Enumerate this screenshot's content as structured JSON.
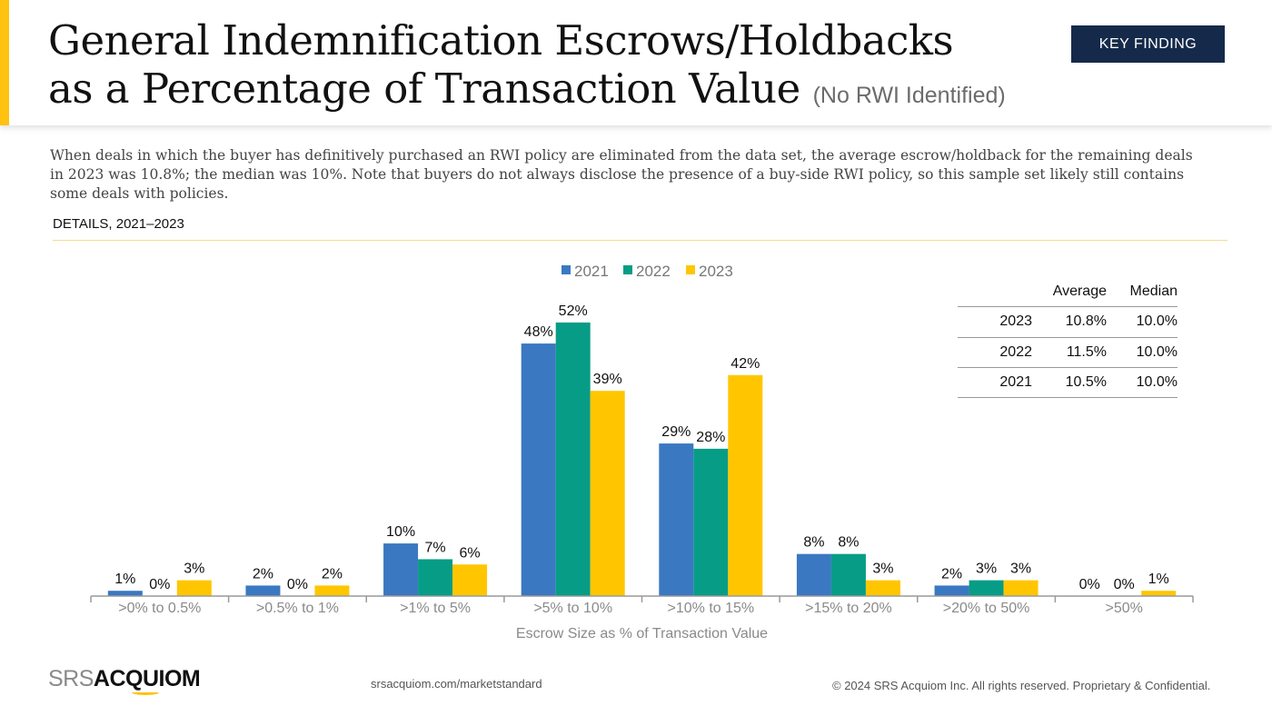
{
  "header": {
    "title_line1": "General Indemnification Escrows/Holdbacks",
    "title_line2": "as a Percentage of Transaction Value",
    "title_sub": "(No RWI Identified)",
    "badge": "KEY FINDING"
  },
  "description": "When deals in which the buyer has definitively purchased an RWI policy are eliminated from the data set, the average escrow/holdback for the remaining deals in 2023 was 10.8%; the median was 10%. Note that buyers do not always disclose the presence of a buy-side RWI policy, so this sample set likely still contains some deals with policies.",
  "section_label": "DETAILS, 2021–2023",
  "stats_table": {
    "headers": [
      "",
      "Average",
      "Median"
    ],
    "rows": [
      {
        "year": "2023",
        "average": "10.8%",
        "median": "10.0%"
      },
      {
        "year": "2022",
        "average": "11.5%",
        "median": "10.0%"
      },
      {
        "year": "2021",
        "average": "10.5%",
        "median": "10.0%"
      }
    ]
  },
  "colors": {
    "2021": "#3A78C2",
    "2022": "#079C86",
    "2023": "#FFC600",
    "accent": "#FFC20E",
    "badge": "#152a4a"
  },
  "chart_data": {
    "type": "bar",
    "title": "",
    "xlabel": "Escrow Size as % of Transaction Value",
    "ylabel": "",
    "ylim": [
      0,
      55
    ],
    "grid": false,
    "legend_position": "top-center",
    "categories": [
      ">0% to 0.5%",
      ">0.5% to 1%",
      ">1% to 5%",
      ">5% to 10%",
      ">10% to 15%",
      ">15% to 20%",
      ">20% to 50%",
      ">50%"
    ],
    "series": [
      {
        "name": "2021",
        "color": "#3A78C2",
        "values": [
          1,
          2,
          10,
          48,
          29,
          8,
          2,
          0
        ]
      },
      {
        "name": "2022",
        "color": "#079C86",
        "values": [
          0,
          0,
          7,
          52,
          28,
          8,
          3,
          0
        ]
      },
      {
        "name": "2023",
        "color": "#FFC600",
        "values": [
          3,
          2,
          6,
          39,
          42,
          3,
          3,
          1
        ]
      }
    ],
    "value_suffix": "%"
  },
  "footer": {
    "logo_srs": "SRS",
    "logo_acquiom": "ACQUIOM",
    "url": "srsacquiom.com/marketstandard",
    "copyright": "© 2024 SRS Acquiom Inc. All rights reserved. Proprietary & Confidential."
  }
}
